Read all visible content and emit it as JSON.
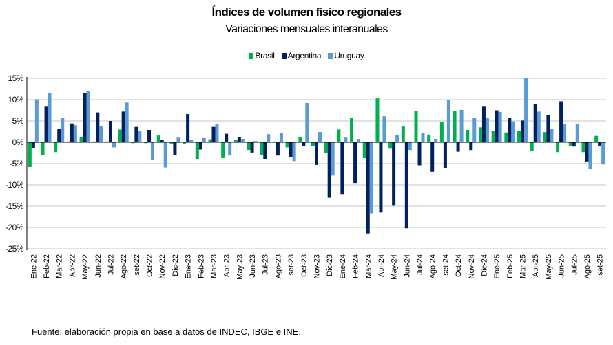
{
  "chart_data": {
    "type": "bar",
    "title": "Índices de volumen físico regionales",
    "subtitle": "Variaciones mensuales interanuales",
    "xlabel": "",
    "ylabel": "",
    "ylim": [
      -25,
      15
    ],
    "yticks": [
      15,
      10,
      5,
      0,
      -5,
      -10,
      -15,
      -20,
      -25
    ],
    "ytick_labels": [
      "15%",
      "10%",
      "5%",
      "0%",
      "-5%",
      "-10%",
      "-15%",
      "-20%",
      "-25%"
    ],
    "grid": true,
    "legend_position": "top-center",
    "categories": [
      "Ene-22",
      "Feb-22",
      "Mar-22",
      "Abr-22",
      "May-22",
      "Jun-22",
      "Jul-22",
      "Ago-22",
      "set-22",
      "Oct-22",
      "Nov-22",
      "Dic-22",
      "Ene-23",
      "Feb-23",
      "Mar-23",
      "Abr-23",
      "May-23",
      "Jun-23",
      "Jul-23",
      "Ago-23",
      "set-23",
      "Oct-23",
      "Nov-23",
      "Dic-23",
      "Ene-24",
      "Feb-24",
      "Mar-24",
      "Abr-24",
      "May-24",
      "Jun-24",
      "Jul-24",
      "Ago-24",
      "set-24",
      "Oct-24",
      "Nov-24",
      "Dic-24",
      "Ene-25",
      "Feb-25",
      "Mar-25",
      "Abr-25",
      "May-25",
      "Jun-25",
      "Jul-25",
      "Ago-25",
      "set-25"
    ],
    "series": [
      {
        "name": "Brasil",
        "color": "#00B050",
        "values": [
          -5.8,
          -2.9,
          -2.3,
          0.2,
          1.3,
          0.2,
          0.2,
          3.0,
          -0.2,
          -0.2,
          1.6,
          -0.3,
          -0.3,
          -3.9,
          0.7,
          -3.7,
          0.5,
          -1.8,
          -3.0,
          0.2,
          -1.2,
          1.3,
          -0.9,
          -2.5,
          3.0,
          5.8,
          -3.7,
          10.3,
          -1.5,
          3.7,
          7.4,
          1.8,
          4.7,
          7.4,
          2.9,
          3.5,
          2.7,
          2.3,
          2.7,
          -2.0,
          2.4,
          -2.3,
          -0.8,
          -2.3,
          1.5
        ]
      },
      {
        "name": "Argentina",
        "color": "#002060",
        "values": [
          -1.3,
          8.5,
          3.2,
          4.4,
          11.5,
          7.0,
          5.0,
          7.2,
          3.6,
          2.9,
          0.5,
          -3.0,
          6.6,
          -1.7,
          3.6,
          2.0,
          1.2,
          -2.4,
          -3.9,
          -3.1,
          -3.4,
          -0.9,
          -5.3,
          -13.0,
          -12.3,
          -9.7,
          -21.4,
          -16.5,
          -14.9,
          -20.2,
          -5.4,
          -6.9,
          -6.1,
          -2.2,
          -1.8,
          8.5,
          7.5,
          5.8,
          5.1,
          9.0,
          6.3,
          9.6,
          -1.0,
          -4.5,
          -0.8
        ]
      },
      {
        "name": "Uruguay",
        "color": "#5B9BD5",
        "values": [
          10.1,
          11.5,
          5.7,
          4.0,
          12.0,
          3.7,
          -1.2,
          9.3,
          2.7,
          -4.2,
          -5.9,
          1.1,
          0.6,
          1.0,
          4.2,
          -3.1,
          0.8,
          0.3,
          1.9,
          2.1,
          -4.4,
          9.2,
          2.4,
          -7.8,
          1.1,
          0.8,
          -16.7,
          6.1,
          1.7,
          -1.8,
          2.1,
          0.8,
          9.9,
          7.6,
          5.8,
          5.8,
          7.1,
          4.9,
          15.0,
          7.2,
          3.1,
          4.2,
          4.2,
          -6.3,
          -5.2
        ]
      }
    ]
  },
  "footer": "Fuente: elaboración propia en base a datos de INDEC, IBGE e INE."
}
